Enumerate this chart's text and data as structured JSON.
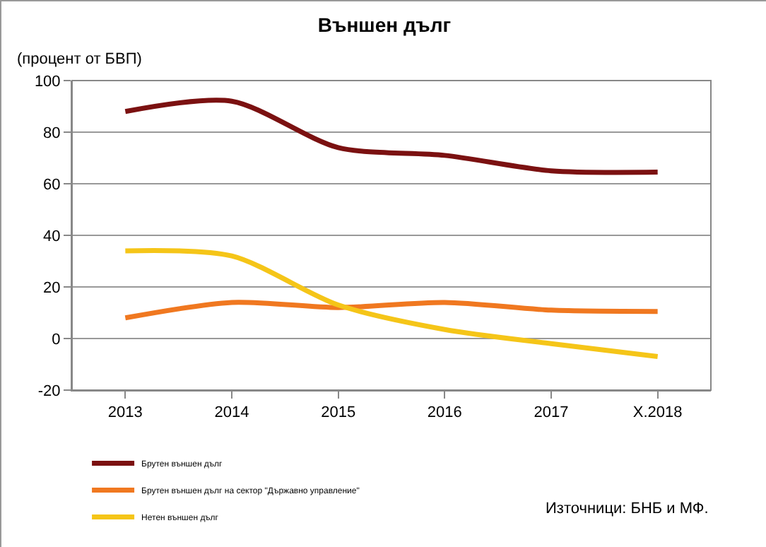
{
  "chart_data": {
    "type": "line",
    "title": "Външен дълг",
    "ylabel": "(процент от БВП)",
    "categories": [
      "2013",
      "2014",
      "2015",
      "2016",
      "2017",
      "X.2018"
    ],
    "series": [
      {
        "name": "Брутен външен дълг",
        "color": "#7b1111",
        "values": [
          88,
          92,
          74,
          71,
          65,
          64.5
        ]
      },
      {
        "name": "Брутен външен дълг на сектор \"Държавно управление\"",
        "color": "#f07820",
        "values": [
          8,
          14,
          12,
          14,
          11,
          10.5
        ]
      },
      {
        "name": "Нетен външен дълг",
        "color": "#f5c518",
        "values": [
          34,
          32,
          13,
          3.5,
          -2,
          -7
        ]
      }
    ],
    "ylim": [
      -20,
      100
    ],
    "yticks": [
      -20,
      0,
      20,
      40,
      60,
      80,
      100
    ],
    "grid": "y",
    "legend": "bottom left",
    "marker": "none",
    "line_style": "solid",
    "annotations": [
      "Източници: БНБ и МФ."
    ]
  }
}
